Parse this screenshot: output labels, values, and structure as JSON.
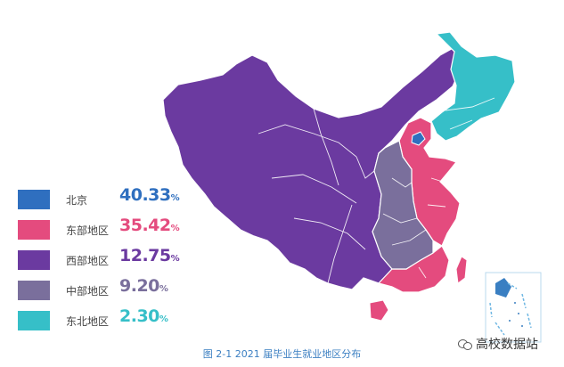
{
  "legend": {
    "items": [
      {
        "name": "北京",
        "value": "40.33",
        "pct": "%",
        "color": "#2f6fbf"
      },
      {
        "name": "东部地区",
        "value": "35.42",
        "pct": "%",
        "color": "#e44b7e"
      },
      {
        "name": "西部地区",
        "value": "12.75",
        "pct": "%",
        "color": "#6b3aa0"
      },
      {
        "name": "中部地区",
        "value": "9.20",
        "pct": "%",
        "color": "#7a6f9c"
      },
      {
        "name": "东北地区",
        "value": "2.30",
        "pct": "%",
        "color": "#36bfc8"
      }
    ]
  },
  "caption": "图 2-1  2021 届毕业生就业地区分布",
  "watermark": "高校数据站",
  "watermark_icon": "wechat-icon"
}
